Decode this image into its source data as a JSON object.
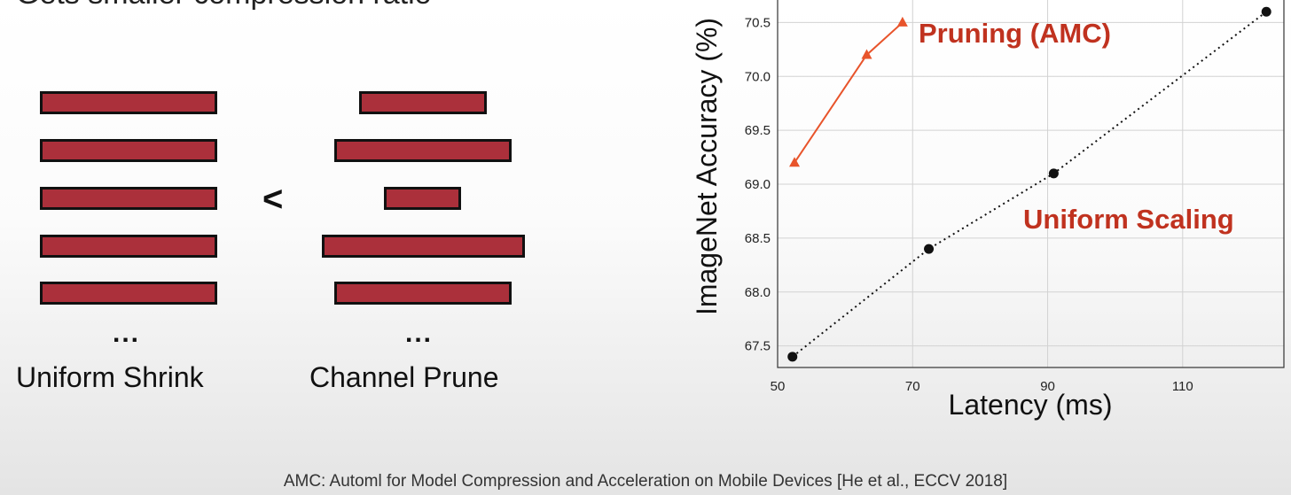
{
  "slide": {
    "title": "Gets smaller compression ratio",
    "less_than": "<",
    "citation": "AMC: Automl for Model Compression and Acceleration on Mobile Devices [He et al., ECCV 2018]"
  },
  "diagram": {
    "left_label": "Uniform Shrink",
    "right_label": "Channel Prune",
    "ellipsis": "...",
    "bar_color": "#ab303b"
  },
  "chart_data": {
    "type": "line",
    "xlabel": "Latency (ms)",
    "ylabel": "ImageNet Accuracy (%)",
    "xlim": [
      50,
      125
    ],
    "ylim": [
      67.3,
      70.75
    ],
    "xticks": [
      50,
      70,
      90,
      110
    ],
    "yticks": [
      67.5,
      68.0,
      68.5,
      69.0,
      69.5,
      70.0,
      70.5
    ],
    "grid": true,
    "series": [
      {
        "name": "Pruning (AMC)",
        "color": "#e8542b",
        "label_color": "#c0321f",
        "marker": "triangle",
        "linestyle": "solid",
        "x": [
          52.5,
          63.2,
          68.5
        ],
        "y": [
          69.2,
          70.2,
          70.5
        ]
      },
      {
        "name": "Uniform Scaling",
        "color": "#111111",
        "label_color": "#c0321f",
        "marker": "circle",
        "linestyle": "dotted",
        "x": [
          52.2,
          72.4,
          90.9,
          122.4
        ],
        "y": [
          67.4,
          68.4,
          69.1,
          70.6
        ]
      }
    ]
  }
}
